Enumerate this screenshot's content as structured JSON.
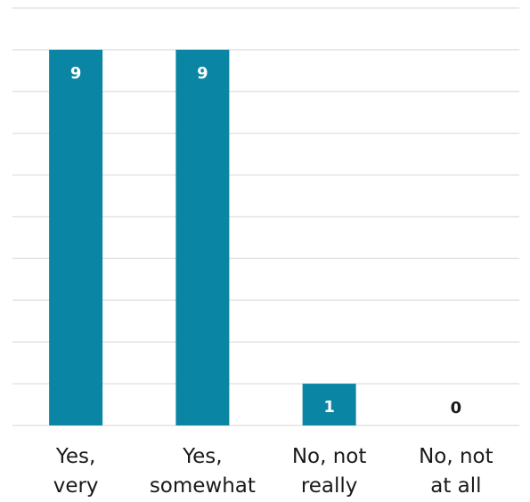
{
  "chart_data": {
    "type": "bar",
    "categories": [
      [
        "Yes,",
        "very"
      ],
      [
        "Yes,",
        "somewhat"
      ],
      [
        "No, not",
        "really"
      ],
      [
        "No, not",
        "at all"
      ]
    ],
    "values": [
      9,
      9,
      1,
      0
    ],
    "ylim": [
      0,
      10
    ],
    "grid": true,
    "bar_color": "#0a85a3",
    "grid_color": "#e3e3e3",
    "data_labels": true
  }
}
